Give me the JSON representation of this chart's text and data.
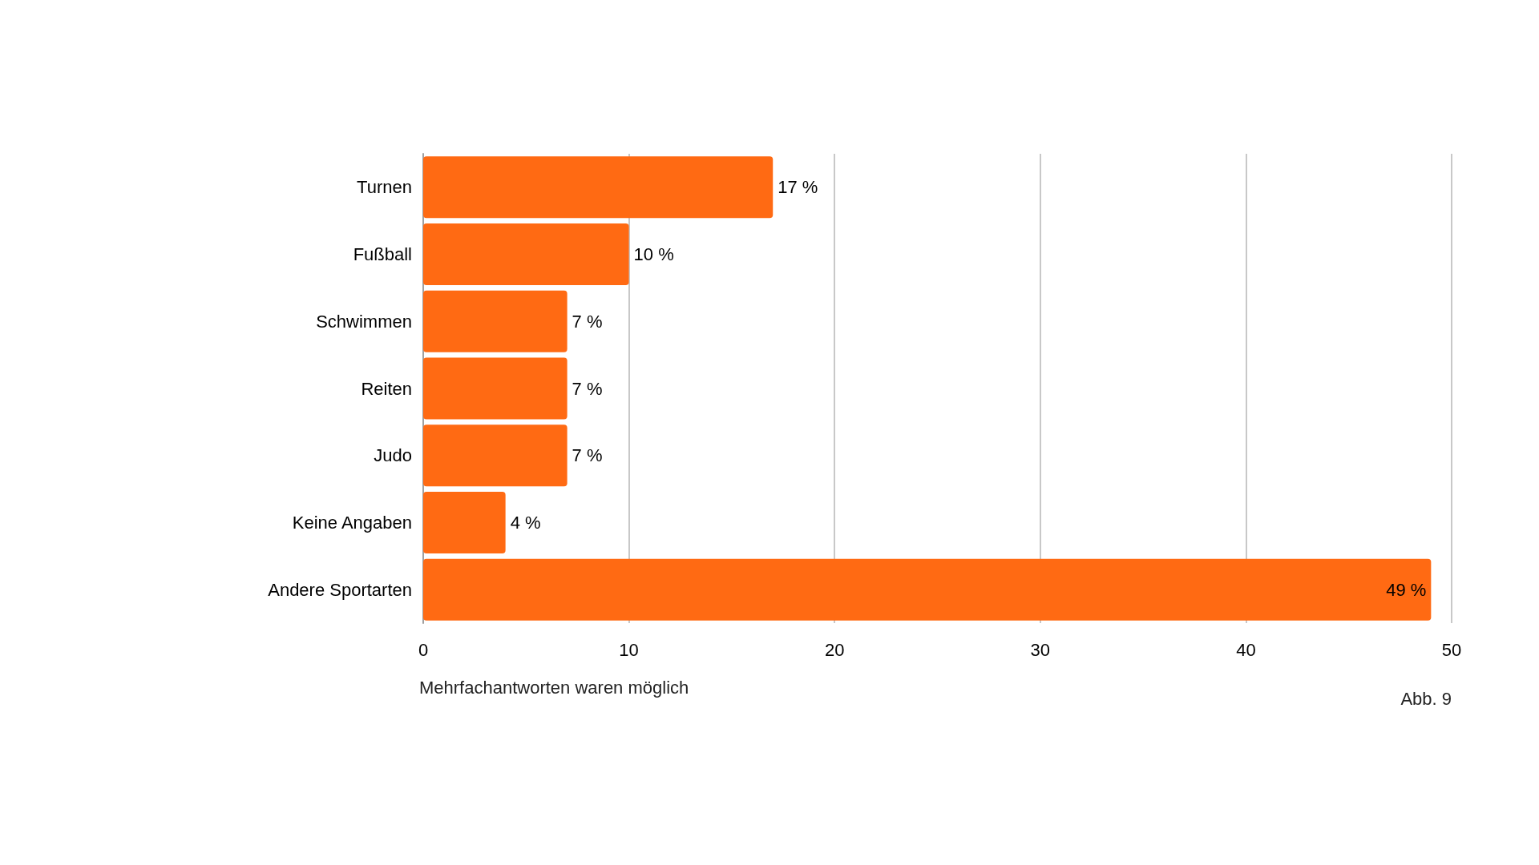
{
  "chart_data": {
    "type": "bar",
    "orientation": "horizontal",
    "categories": [
      "Turnen",
      "Fußball",
      "Schwimmen",
      "Reiten",
      "Judo",
      "Keine Angaben",
      "Andere Sportarten"
    ],
    "values": [
      17,
      10,
      7,
      7,
      7,
      4,
      49
    ],
    "value_labels": [
      "17 %",
      "10 %",
      "7 %",
      "7 %",
      "7 %",
      "4 %",
      "49 %"
    ],
    "color": "#ff6a13",
    "xlim": [
      0,
      50
    ],
    "xticks": [
      0,
      10,
      20,
      30,
      40,
      50
    ],
    "grid": "x",
    "annotations": [
      "Mehrfachantworten waren möglich",
      "Abb. 9"
    ]
  }
}
